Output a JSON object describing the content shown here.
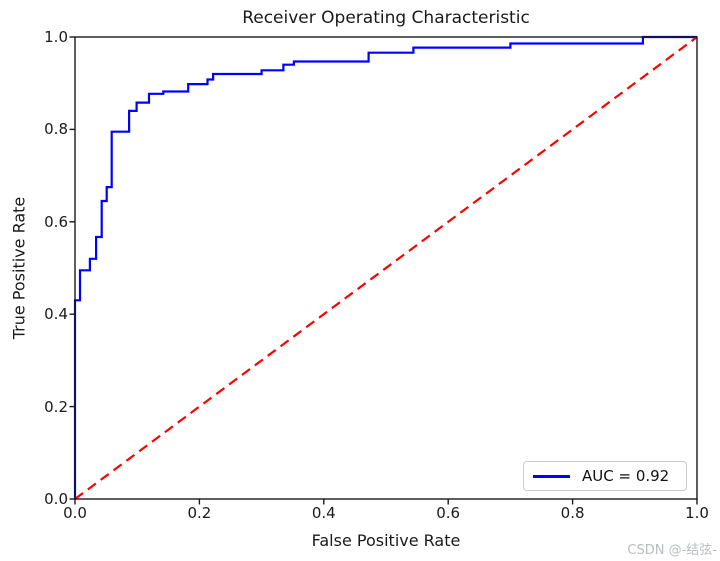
{
  "watermark": "CSDN @-结弦-",
  "colors": {
    "curve": "#0000ff",
    "diagonal": "#ff0000",
    "axis": "#1a1a1a",
    "legend_border": "#cccccc",
    "watermark": "#b9bdc2",
    "background": "#ffffff"
  },
  "chart_data": {
    "type": "line",
    "title": "Receiver Operating Characteristic",
    "xlabel": "False Positive Rate",
    "ylabel": "True Positive Rate",
    "xlim": [
      0.0,
      1.0
    ],
    "ylim": [
      0.0,
      1.0
    ],
    "xticks": [
      "0.0",
      "0.2",
      "0.4",
      "0.6",
      "0.8",
      "1.0"
    ],
    "yticks": [
      "0.0",
      "0.2",
      "0.4",
      "0.6",
      "0.8",
      "1.0"
    ],
    "grid": false,
    "auc": 0.92,
    "legend": {
      "position": "lower right",
      "entries": [
        {
          "label": "AUC = 0.92",
          "color": "#0000ff",
          "style": "solid"
        }
      ]
    },
    "series": [
      {
        "name": "ROC curve",
        "color": "#0000ff",
        "style": "solid",
        "points": [
          [
            0.0,
            0.0
          ],
          [
            0.0,
            0.43
          ],
          [
            0.008,
            0.43
          ],
          [
            0.008,
            0.495
          ],
          [
            0.024,
            0.495
          ],
          [
            0.024,
            0.52
          ],
          [
            0.034,
            0.52
          ],
          [
            0.034,
            0.567
          ],
          [
            0.043,
            0.567
          ],
          [
            0.043,
            0.645
          ],
          [
            0.051,
            0.645
          ],
          [
            0.051,
            0.675
          ],
          [
            0.059,
            0.675
          ],
          [
            0.059,
            0.795
          ],
          [
            0.087,
            0.795
          ],
          [
            0.087,
            0.84
          ],
          [
            0.099,
            0.84
          ],
          [
            0.099,
            0.858
          ],
          [
            0.119,
            0.858
          ],
          [
            0.119,
            0.877
          ],
          [
            0.142,
            0.877
          ],
          [
            0.142,
            0.882
          ],
          [
            0.182,
            0.882
          ],
          [
            0.182,
            0.898
          ],
          [
            0.213,
            0.898
          ],
          [
            0.213,
            0.908
          ],
          [
            0.222,
            0.908
          ],
          [
            0.222,
            0.92
          ],
          [
            0.3,
            0.92
          ],
          [
            0.3,
            0.928
          ],
          [
            0.335,
            0.928
          ],
          [
            0.335,
            0.94
          ],
          [
            0.352,
            0.94
          ],
          [
            0.352,
            0.947
          ],
          [
            0.472,
            0.947
          ],
          [
            0.472,
            0.966
          ],
          [
            0.544,
            0.966
          ],
          [
            0.544,
            0.977
          ],
          [
            0.7,
            0.977
          ],
          [
            0.7,
            0.986
          ],
          [
            0.913,
            0.986
          ],
          [
            0.913,
            1.0
          ],
          [
            1.0,
            1.0
          ]
        ]
      },
      {
        "name": "chance diagonal",
        "color": "#ff0000",
        "style": "dashed",
        "points": [
          [
            0.0,
            0.0
          ],
          [
            1.0,
            1.0
          ]
        ]
      }
    ]
  }
}
